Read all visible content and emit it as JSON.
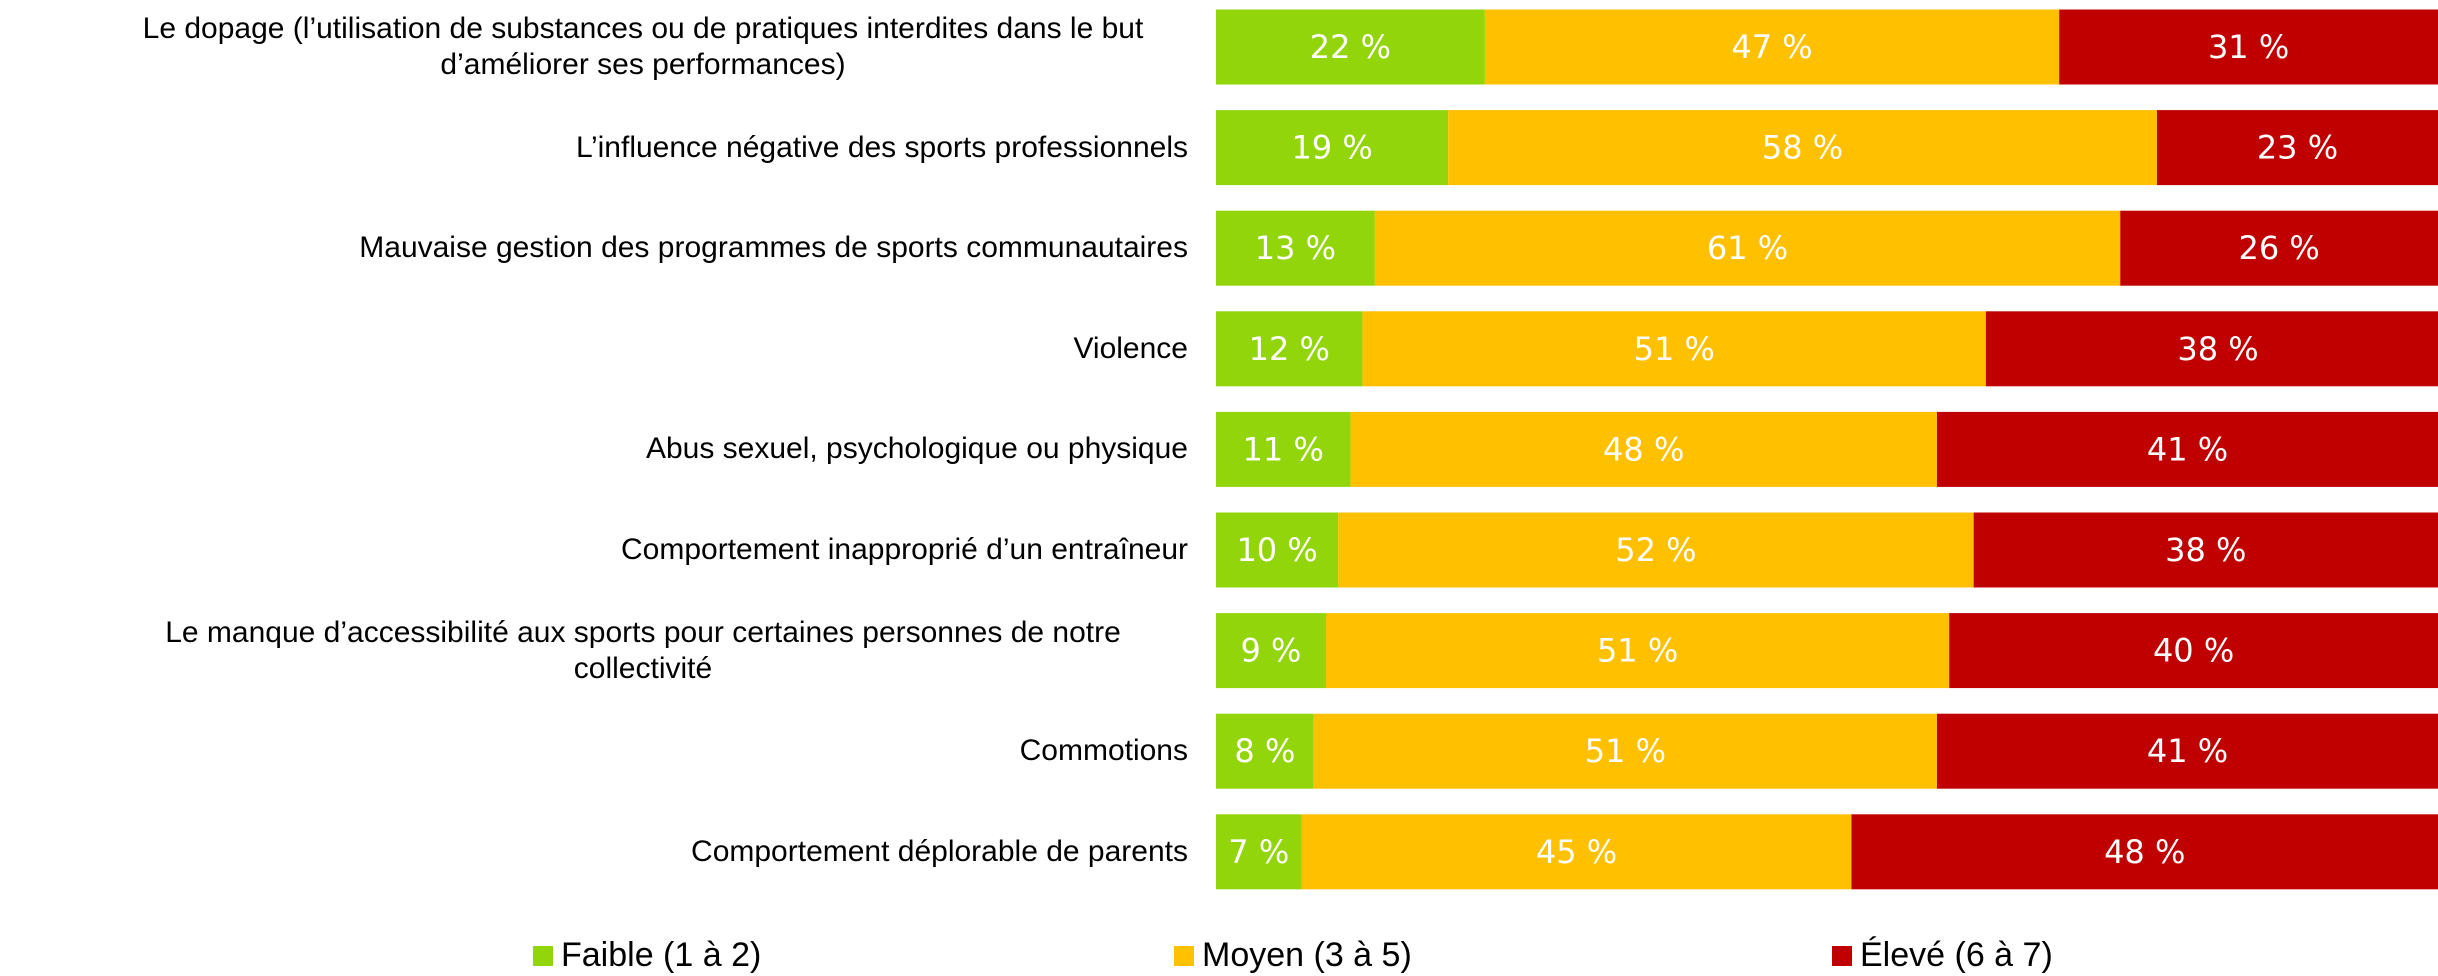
{
  "chart_data": {
    "type": "stacked_barh",
    "categories": [
      "Le dopage (l’utilisation de substances ou de pratiques interdites dans le but d’améliorer ses performances)",
      "L’influence négative des sports professionnels",
      "Mauvaise gestion des programmes de sports communautaires",
      "Violence",
      "Abus sexuel, psychologique ou physique",
      "Comportement inapproprié d’un entraîneur",
      "Le manque d’accessibilité aux sports pour certaines personnes de notre collectivité",
      "Commotions",
      "Comportement déplorable de parents"
    ],
    "series": [
      {
        "name": "Faible (1 à 2)",
        "color": "#92d50a",
        "values": [
          22,
          19,
          13,
          12,
          11,
          10,
          9,
          8,
          7
        ],
        "value_labels": [
          "22 %",
          "19 %",
          "13 %",
          "12 %",
          "11 %",
          "10 %",
          "9 %",
          "8 %",
          "7 %"
        ]
      },
      {
        "name": "Moyen (3 à 5)",
        "color": "#ffc000",
        "values": [
          47,
          58,
          61,
          51,
          48,
          52,
          51,
          51,
          45
        ],
        "value_labels": [
          "47 %",
          "58 %",
          "61 %",
          "51 %",
          "48 %",
          "52 %",
          "51 %",
          "51 %",
          "45 %"
        ]
      },
      {
        "name": "Élevé (6 à 7)",
        "color": "#c00000",
        "values": [
          31,
          23,
          26,
          38,
          41,
          38,
          40,
          41,
          48
        ],
        "value_labels": [
          "31 %",
          "23 %",
          "26 %",
          "38 %",
          "41 %",
          "38 %",
          "40 %",
          "41 %",
          "48 %"
        ]
      }
    ]
  }
}
